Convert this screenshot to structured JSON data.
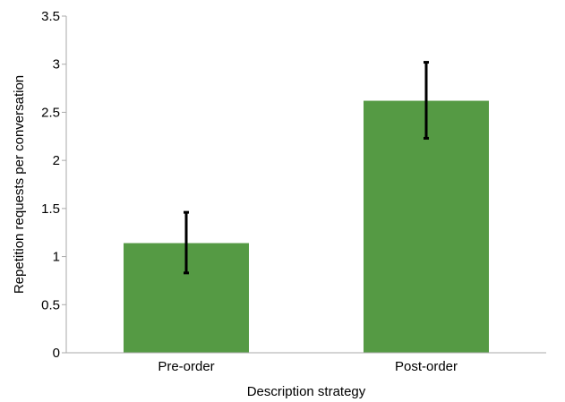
{
  "chart_data": {
    "type": "bar",
    "title": "",
    "xlabel": "Description strategy",
    "ylabel": "Repetition requests per conversation",
    "categories": [
      "Pre-order",
      "Post-order"
    ],
    "values": [
      1.14,
      2.62
    ],
    "error_low": [
      0.83,
      2.23
    ],
    "error_high": [
      1.46,
      3.02
    ],
    "ylim": [
      0,
      3.5
    ],
    "yticks": [
      "0",
      "0.5",
      "1",
      "1.5",
      "2",
      "2.5",
      "3",
      "3.5"
    ],
    "grid": false,
    "legend": "none",
    "bar_color": "#559a44",
    "error_bar_color": "#000000",
    "axis_color": "#aaaaaa"
  }
}
